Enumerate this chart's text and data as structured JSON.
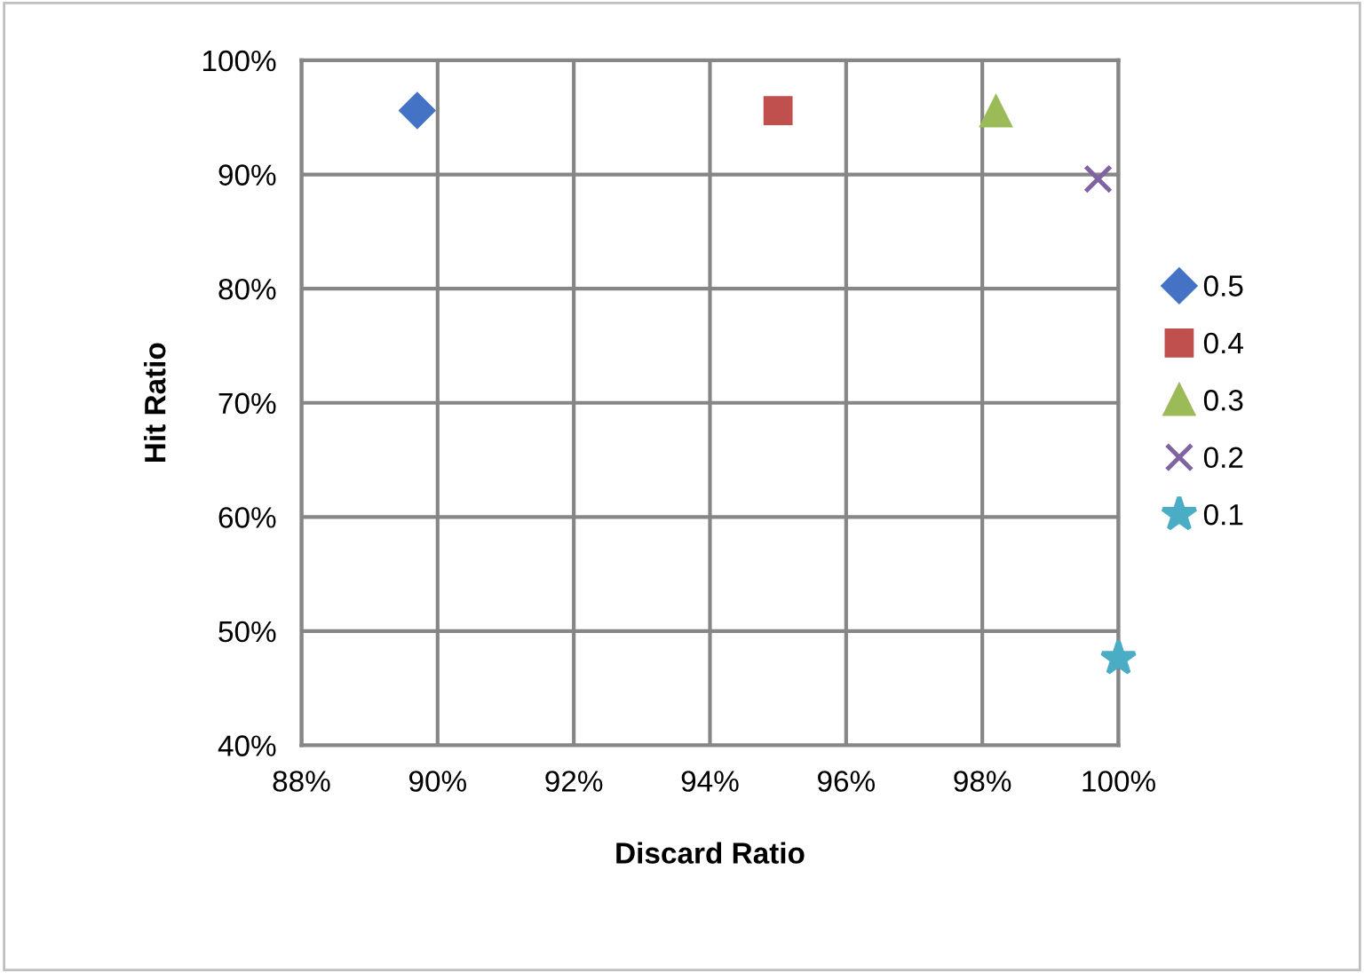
{
  "chart_data": {
    "type": "scatter",
    "xlabel": "Discard Ratio",
    "ylabel": "Hit Ratio",
    "series": [
      {
        "name": "0.5",
        "color": "#4472c4",
        "marker": "diamond",
        "x": [
          89.7
        ],
        "values": [
          95.6
        ]
      },
      {
        "name": "0.4",
        "color": "#c0504d",
        "marker": "square",
        "x": [
          95.0
        ],
        "values": [
          95.6
        ]
      },
      {
        "name": "0.3",
        "color": "#9bbb59",
        "marker": "triangle",
        "x": [
          98.2
        ],
        "values": [
          95.5
        ]
      },
      {
        "name": "0.2",
        "color": "#8064a2",
        "marker": "cross",
        "x": [
          99.7
        ],
        "values": [
          89.6
        ]
      },
      {
        "name": "0.1",
        "color": "#4bacc6",
        "marker": "star",
        "x": [
          100.0
        ],
        "values": [
          47.6
        ]
      }
    ],
    "xlim": [
      88,
      100
    ],
    "xticks": [
      {
        "value": 88,
        "label": "88%"
      },
      {
        "value": 90,
        "label": "90%"
      },
      {
        "value": 92,
        "label": "92%"
      },
      {
        "value": 94,
        "label": "94%"
      },
      {
        "value": 96,
        "label": "96%"
      },
      {
        "value": 98,
        "label": "98%"
      },
      {
        "value": 100,
        "label": "100%"
      }
    ],
    "ylim": [
      40,
      100
    ],
    "yticks": [
      {
        "value": 40,
        "label": "40%"
      },
      {
        "value": 50,
        "label": "50%"
      },
      {
        "value": 60,
        "label": "60%"
      },
      {
        "value": 70,
        "label": "70%"
      },
      {
        "value": 80,
        "label": "80%"
      },
      {
        "value": 90,
        "label": "90%"
      },
      {
        "value": 100,
        "label": "100%"
      }
    ],
    "grid": true,
    "legend": "right"
  }
}
